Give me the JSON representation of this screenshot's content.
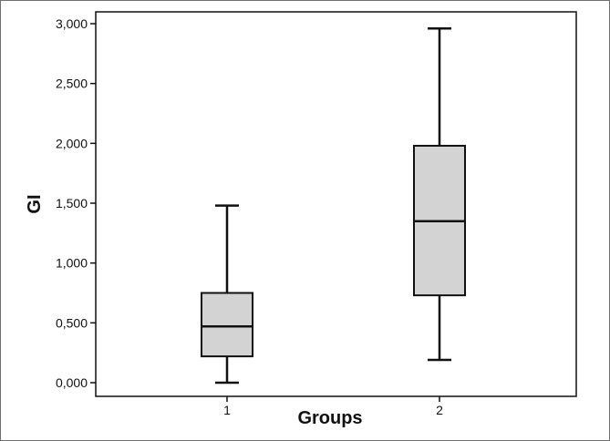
{
  "chart_data": {
    "type": "boxplot",
    "title": "",
    "xlabel": "Groups",
    "ylabel": "GI",
    "ylim": [
      -0.1,
      3.1
    ],
    "yticks": [
      0.0,
      0.5,
      1.0,
      1.5,
      2.0,
      2.5,
      3.0
    ],
    "ytick_labels": [
      "0,000",
      "0,500",
      "1,000",
      "1,500",
      "2,000",
      "2,500",
      "3,000"
    ],
    "categories": [
      "1",
      "2"
    ],
    "boxes": [
      {
        "category": "1",
        "whisker_low": 0.0,
        "q1": 0.22,
        "median": 0.47,
        "q3": 0.75,
        "whisker_high": 1.48
      },
      {
        "category": "2",
        "whisker_low": 0.19,
        "q1": 0.73,
        "median": 1.35,
        "q3": 1.98,
        "whisker_high": 2.96
      }
    ],
    "box_fill": "#d3d3d3",
    "line_color": "#111111",
    "grid": false,
    "legend": "none"
  }
}
